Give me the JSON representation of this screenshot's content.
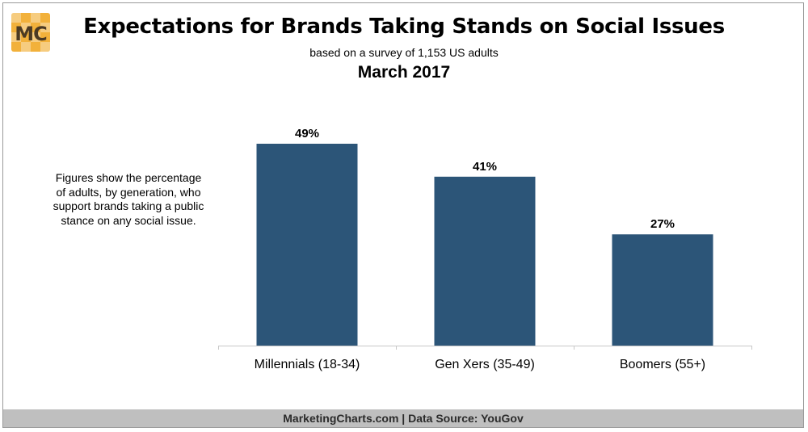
{
  "logo": {
    "text": "MC",
    "color": "#f2b13b"
  },
  "chart_data": {
    "type": "bar",
    "title": "Expectations for Brands Taking Stands on Social Issues",
    "subtitle": "based on a survey of 1,153 US adults",
    "date": "March 2017",
    "note": "Figures show the percentage of adults, by generation, who support brands taking a public stance on any social issue.",
    "categories": [
      "Millennials (18-34)",
      "Gen Xers (35-49)",
      "Boomers (55+)"
    ],
    "values": [
      49,
      41,
      27
    ],
    "value_labels": [
      "49%",
      "41%",
      "27%"
    ],
    "unit": "%",
    "ylim": [
      0,
      60
    ],
    "grid": false,
    "bar_color": "#2c5578"
  },
  "footer": {
    "text": "MarketingCharts.com | Data Source: YouGov"
  }
}
